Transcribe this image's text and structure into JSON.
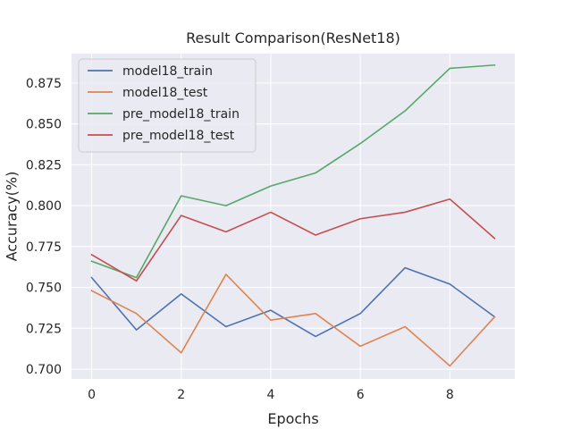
{
  "chart_data": {
    "type": "line",
    "title": "Result Comparison(ResNet18)",
    "xlabel": "Epochs",
    "ylabel": "Accuracy(%)",
    "x": [
      0,
      1,
      2,
      3,
      4,
      5,
      6,
      7,
      8,
      9
    ],
    "xlim": [
      -0.45,
      9.45
    ],
    "ylim": [
      0.694,
      0.893
    ],
    "xticks": [
      0,
      2,
      4,
      6,
      8
    ],
    "xtick_labels": [
      "0",
      "2",
      "4",
      "6",
      "8"
    ],
    "yticks": [
      0.7,
      0.725,
      0.75,
      0.775,
      0.8,
      0.825,
      0.85,
      0.875
    ],
    "ytick_labels": [
      "0.700",
      "0.725",
      "0.750",
      "0.775",
      "0.800",
      "0.825",
      "0.850",
      "0.875"
    ],
    "grid": true,
    "legend_position": "upper-left",
    "series": [
      {
        "name": "model18_train",
        "color": "#4c72b0",
        "values": [
          0.756,
          0.724,
          0.746,
          0.726,
          0.736,
          0.72,
          0.734,
          0.762,
          0.752,
          0.732
        ]
      },
      {
        "name": "model18_test",
        "color": "#dd8452",
        "values": [
          0.748,
          0.734,
          0.71,
          0.758,
          0.73,
          0.734,
          0.714,
          0.726,
          0.702,
          0.732
        ]
      },
      {
        "name": "pre_model18_train",
        "color": "#55a868",
        "values": [
          0.766,
          0.756,
          0.806,
          0.8,
          0.812,
          0.82,
          0.838,
          0.858,
          0.884,
          0.886
        ]
      },
      {
        "name": "pre_model18_test",
        "color": "#c44e52",
        "values": [
          0.77,
          0.754,
          0.794,
          0.784,
          0.796,
          0.782,
          0.792,
          0.796,
          0.804,
          0.78
        ]
      }
    ]
  }
}
